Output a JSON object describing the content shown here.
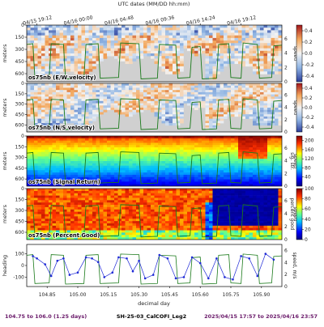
{
  "chart_data": {
    "type": "heatmap",
    "top_axis_title": "UTC dates (MM/DD hh:mm)",
    "top_axis_ticks": [
      "04/15 19:12",
      "04/16 00:00",
      "04/16 04:48",
      "04/16 09:36",
      "04/16 14:24",
      "04/16 19:12"
    ],
    "top_axis_positions": [
      104.8,
      105.0,
      105.2,
      105.4,
      105.6,
      105.8
    ],
    "xlim": [
      104.75,
      106.0
    ],
    "x_ticks": [
      "104.85",
      "105.00",
      "105.15",
      "105.30",
      "105.45",
      "105.60",
      "105.75",
      "105.90"
    ],
    "x_tick_values": [
      104.85,
      105.0,
      105.15,
      105.3,
      105.45,
      105.6,
      105.75,
      105.9
    ],
    "xlabel": "decimal day",
    "depth_ticks": [
      "0",
      "150",
      "300",
      "450",
      "600"
    ],
    "depth_range": [
      0,
      700
    ],
    "depth_label": "meters",
    "speed_ticks": [
      "0",
      "2",
      "4",
      "6"
    ],
    "speed_label": "speed",
    "panels": [
      {
        "title": "os75nb (E/W velocity)",
        "colormap": "diverging",
        "colorbar_ticks": [
          "0.4",
          "0.2",
          "0.0",
          "-0.2",
          "-0.4"
        ],
        "colorbar_range": [
          -0.5,
          0.5
        ]
      },
      {
        "title": "os75nb (N/S velocity)",
        "colormap": "diverging",
        "colorbar_ticks": [
          "0.4",
          "0.2",
          "0.0",
          "-0.2",
          "-0.4"
        ],
        "colorbar_range": [
          -0.5,
          0.5
        ]
      },
      {
        "title": "os75nb (Signal Return)",
        "colormap": "jet",
        "colorbar_ticks": [
          "200",
          "160",
          "120",
          "80",
          "40"
        ],
        "colorbar_range": [
          0,
          220
        ],
        "colorbar_label": "sig. str."
      },
      {
        "title": "os75nb (Percent Good)",
        "colormap": "jet",
        "colorbar_ticks": [
          "100",
          "80",
          "60",
          "40",
          "20",
          "0"
        ],
        "colorbar_range": [
          0,
          100
        ],
        "colorbar_label": "percent good"
      }
    ],
    "heading_panel": {
      "ylabel": "heading",
      "yticks": [
        "100",
        "0",
        "-100"
      ],
      "ylim": [
        -180,
        180
      ],
      "right_label": "speed, m/s",
      "right_ticks": [
        "6",
        "4",
        "2",
        "0"
      ]
    },
    "ship_speed": {
      "x": [
        104.75,
        104.78,
        104.79,
        104.86,
        104.87,
        104.93,
        104.94,
        105.03,
        105.04,
        105.1,
        105.11,
        105.2,
        105.21,
        105.3,
        105.31,
        105.39,
        105.4,
        105.48,
        105.49,
        105.55,
        105.56,
        105.6,
        105.61,
        105.68,
        105.69,
        105.74,
        105.75,
        105.8,
        105.81,
        105.88,
        105.89,
        105.95,
        105.96,
        106.0
      ],
      "y": [
        5.2,
        5.3,
        0.5,
        0.6,
        5.3,
        5.2,
        0.4,
        0.5,
        5.2,
        5.3,
        0.5,
        0.6,
        5.4,
        5.3,
        0.4,
        0.5,
        5.2,
        5.1,
        0.5,
        0.6,
        4.8,
        4.9,
        0.4,
        0.5,
        5.2,
        5.3,
        0.6,
        0.5,
        5.4,
        5.2,
        0.5,
        0.6,
        5.0,
        5.1
      ]
    },
    "heading": {
      "x": [
        104.78,
        104.8,
        104.84,
        104.87,
        104.9,
        104.93,
        104.96,
        105.0,
        105.04,
        105.07,
        105.1,
        105.13,
        105.17,
        105.2,
        105.24,
        105.27,
        105.3,
        105.33,
        105.37,
        105.4,
        105.44,
        105.48,
        105.52,
        105.56,
        105.6,
        105.64,
        105.68,
        105.72,
        105.76,
        105.8,
        105.84,
        105.88,
        105.92,
        105.96
      ],
      "y": [
        80,
        60,
        10,
        -90,
        40,
        60,
        -80,
        -60,
        70,
        60,
        30,
        -100,
        -60,
        70,
        60,
        -50,
        40,
        -110,
        -80,
        90,
        60,
        -110,
        -100,
        70,
        20,
        -110,
        60,
        -100,
        -120,
        80,
        60,
        -90,
        100,
        50
      ]
    },
    "footer_left": "104.75 to 106.0 (1.25 days)",
    "footer_center": "SH-25-03_CalCOFI_Leg2",
    "footer_right": "2025/04/15 17:57 to 2025/04/16 23:57"
  }
}
